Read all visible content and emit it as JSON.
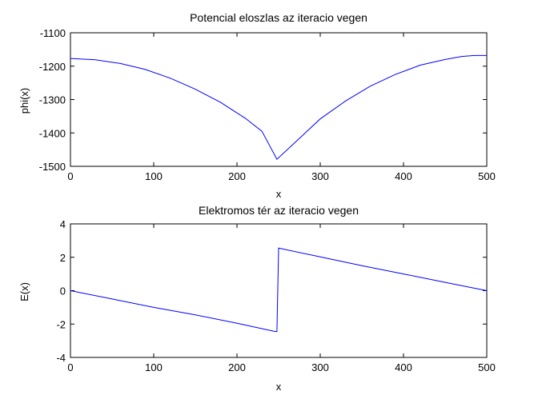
{
  "chart_data": [
    {
      "type": "line",
      "title": "Potencial eloszlas az iteracio vegen",
      "xlabel": "x",
      "ylabel": "phi(x)",
      "xlim": [
        0,
        500
      ],
      "ylim": [
        -1500,
        -1100
      ],
      "xticks": [
        0,
        100,
        200,
        300,
        400,
        500
      ],
      "yticks": [
        -1100,
        -1200,
        -1300,
        -1400,
        -1500
      ],
      "grid": false,
      "line_color": "#0000ff",
      "series": [
        {
          "x": [
            0,
            30,
            60,
            90,
            120,
            150,
            180,
            210,
            230,
            248,
            270,
            300,
            330,
            360,
            390,
            420,
            450,
            470,
            485,
            500
          ],
          "values": [
            -1177,
            -1181,
            -1192,
            -1210,
            -1236,
            -1269,
            -1308,
            -1356,
            -1395,
            -1479,
            -1428,
            -1358,
            -1305,
            -1260,
            -1225,
            -1197,
            -1180,
            -1171,
            -1168,
            -1168
          ]
        }
      ]
    },
    {
      "type": "line",
      "title": "Elektromos tér az iteracio vegen",
      "xlabel": "x",
      "ylabel": "E(x)",
      "xlim": [
        0,
        500
      ],
      "ylim": [
        -4,
        4
      ],
      "xticks": [
        0,
        100,
        200,
        300,
        400,
        500
      ],
      "yticks": [
        4,
        2,
        0,
        -2,
        -4
      ],
      "grid": false,
      "line_color": "#0000ff",
      "series": [
        {
          "x": [
            0,
            50,
            100,
            150,
            200,
            246,
            248,
            250,
            300,
            350,
            400,
            450,
            500
          ],
          "values": [
            0,
            -0.5,
            -1.0,
            -1.45,
            -1.95,
            -2.45,
            -2.45,
            2.55,
            2.02,
            1.5,
            1.0,
            0.5,
            0
          ]
        }
      ]
    }
  ]
}
